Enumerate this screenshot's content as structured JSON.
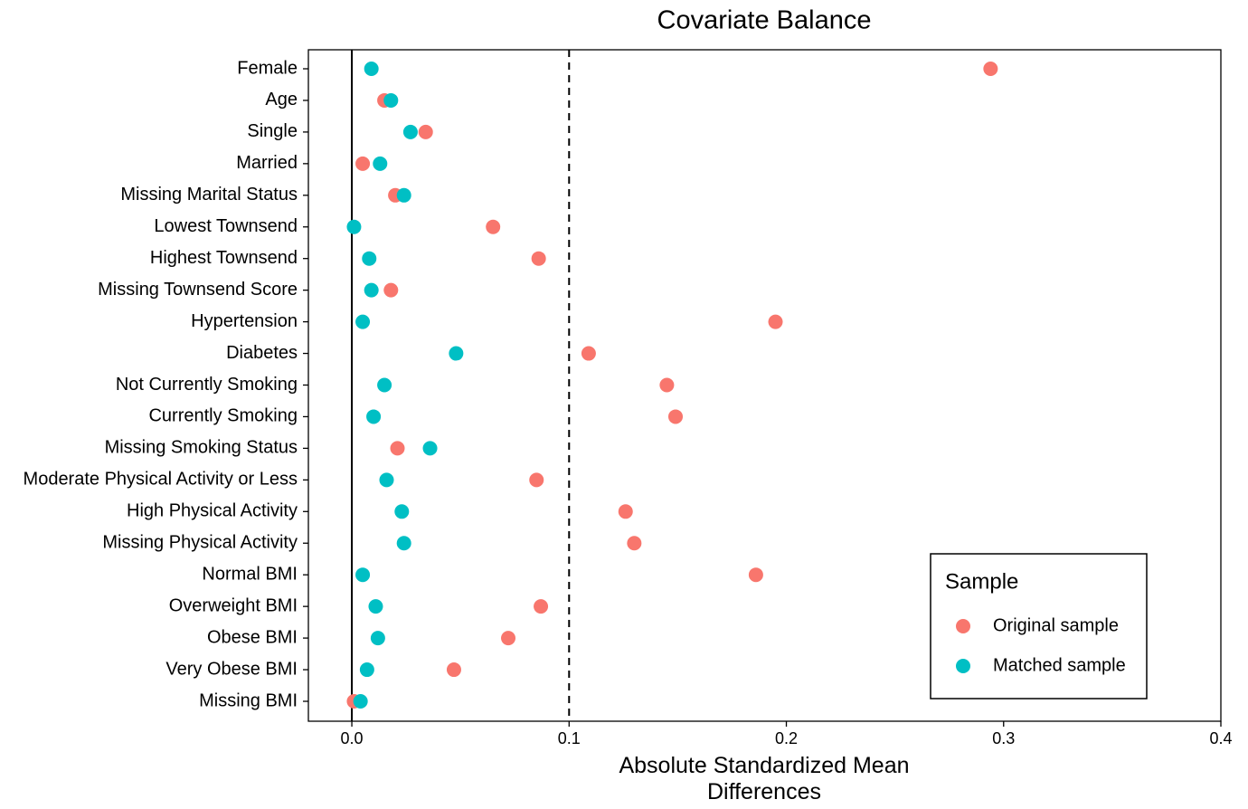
{
  "chart_data": {
    "type": "scatter",
    "title": "Covariate Balance",
    "xlabel": "Absolute Standardized Mean Differences",
    "categories": [
      "Female",
      "Age",
      "Single",
      "Married",
      "Missing Marital Status",
      "Lowest Townsend",
      "Highest Townsend",
      "Missing Townsend Score",
      "Hypertension",
      "Diabetes",
      "Not Currently Smoking",
      "Currently Smoking",
      "Missing Smoking Status",
      "Moderate Physical Activity or Less",
      "High Physical Activity",
      "Missing Physical Activity",
      "Normal BMI",
      "Overweight BMI",
      "Obese BMI",
      "Very Obese BMI",
      "Missing BMI"
    ],
    "series": [
      {
        "name": "Original sample",
        "color": "#F8766D",
        "values": [
          0.294,
          0.015,
          0.034,
          0.005,
          0.02,
          0.065,
          0.086,
          0.018,
          0.195,
          0.109,
          0.145,
          0.149,
          0.021,
          0.085,
          0.126,
          0.13,
          0.186,
          0.087,
          0.072,
          0.047,
          0.001
        ]
      },
      {
        "name": "Matched sample",
        "color": "#00BFC4",
        "values": [
          0.009,
          0.018,
          0.027,
          0.013,
          0.024,
          0.001,
          0.008,
          0.009,
          0.005,
          0.048,
          0.015,
          0.01,
          0.036,
          0.016,
          0.023,
          0.024,
          0.005,
          0.011,
          0.012,
          0.007,
          0.004
        ]
      }
    ],
    "xlim": [
      -0.02,
      0.4
    ],
    "xticks": [
      {
        "value": 0,
        "label": "0.0"
      },
      0.1,
      0.2,
      0.3,
      0.4
    ],
    "vlines": [
      {
        "x": 0,
        "dashed": false
      },
      {
        "x": 0.1,
        "dashed": true
      }
    ],
    "legend_title": "Sample",
    "legend": "bottom-right",
    "grid": false
  }
}
